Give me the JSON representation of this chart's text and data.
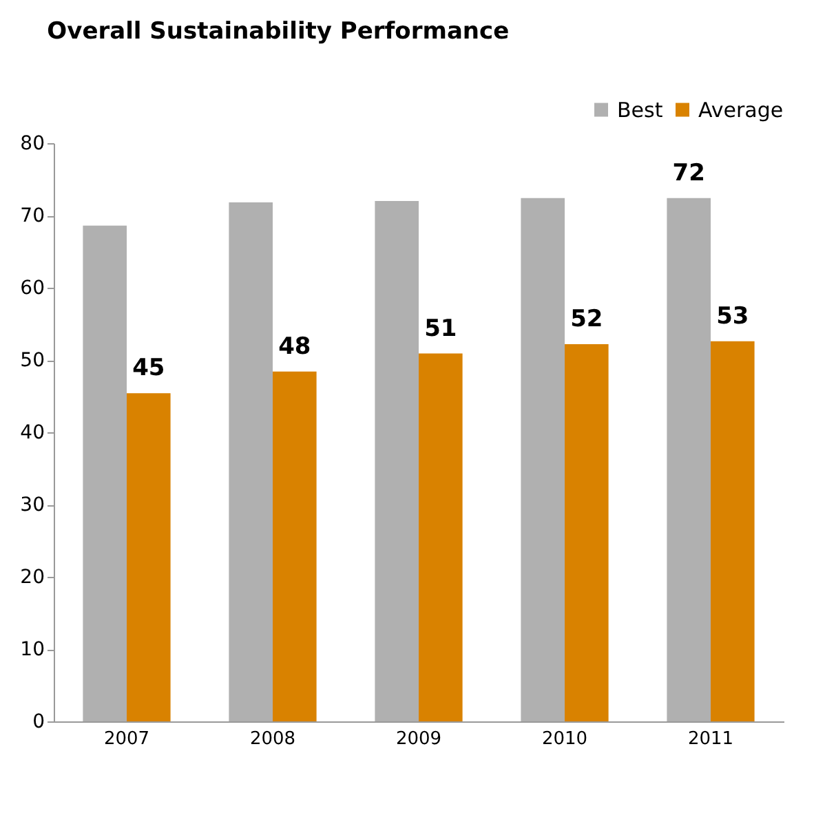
{
  "chart_data": {
    "type": "bar",
    "title": "Overall Sustainability Performance",
    "categories": [
      "2007",
      "2008",
      "2009",
      "2010",
      "2011"
    ],
    "series": [
      {
        "name": "Best",
        "color": "#b0b0b0",
        "values": [
          68.6,
          71.8,
          72.0,
          72.4,
          72.4
        ],
        "value_labels": [
          null,
          null,
          null,
          null,
          "72"
        ]
      },
      {
        "name": "Average",
        "color": "#d98200",
        "values": [
          45.4,
          48.4,
          50.9,
          52.2,
          52.6
        ],
        "value_labels": [
          "45",
          "48",
          "51",
          "52",
          "53"
        ]
      }
    ],
    "ylim": [
      0,
      80
    ],
    "yticks": [
      0,
      10,
      20,
      30,
      40,
      50,
      60,
      70,
      80
    ],
    "grid": false,
    "legend": "top right"
  }
}
